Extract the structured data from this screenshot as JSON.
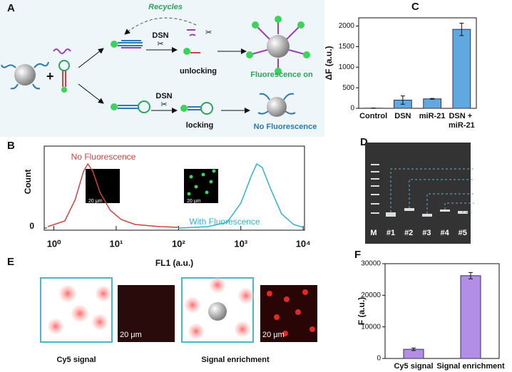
{
  "panel_labels": [
    "A",
    "B",
    "C",
    "D",
    "E",
    "F"
  ],
  "panel_a": {
    "recycles": "Recycles",
    "dsn_top": "DSN",
    "unlocking": "unlocking",
    "fluorescence_on": "Fluorescence on",
    "dsn_bottom": "DSN",
    "locking": "locking",
    "no_fluorescence": "No  Fluorescence"
  },
  "panel_d": {
    "lanes": [
      "M",
      "#1",
      "#2",
      "#3",
      "#4",
      "#5"
    ]
  },
  "panel_e": {
    "scale_bars": [
      "20 μm",
      "20 μm"
    ],
    "captions": [
      "Cy5 signal",
      "Signal enrichment"
    ]
  },
  "chart_data": [
    {
      "type": "line",
      "xlabel": "FL1 (a.u.)",
      "ylabel": "Count",
      "xscale": "log",
      "xlim": [
        0.7,
        10500
      ],
      "ylim": [
        0,
        115
      ],
      "xticks": [
        {
          "value": 1,
          "label": "10⁰"
        },
        {
          "value": 10,
          "label": "10¹"
        },
        {
          "value": 100,
          "label": "10²"
        },
        {
          "value": 1000,
          "label": "10³"
        },
        {
          "value": 10000,
          "label": "10⁴"
        }
      ],
      "yticks": [
        0
      ],
      "annotations": [
        "No  Fluorescence",
        "With Fluorescence",
        "20 μm",
        "20 μm"
      ],
      "series": [
        {
          "name": "No Fluorescence",
          "color": "#d0433f",
          "x": [
            0.8,
            1.5,
            2.2,
            3,
            3.5,
            4.2,
            5.5,
            8,
            12,
            20,
            50,
            100
          ],
          "values": [
            2,
            10,
            40,
            80,
            90,
            80,
            50,
            25,
            12,
            5,
            2,
            1
          ]
        },
        {
          "name": "With Fluorescence",
          "color": "#2bb3d0",
          "x": [
            100,
            300,
            600,
            1000,
            1500,
            1800,
            2200,
            3000,
            4500,
            7000,
            10000
          ],
          "values": [
            0,
            2,
            8,
            35,
            75,
            90,
            85,
            55,
            20,
            5,
            1
          ]
        }
      ]
    },
    {
      "type": "bar",
      "ylabel": "ΔF (a.u.)",
      "categories": [
        "Control",
        "DSN",
        "miR-21",
        "DSN + miR-21"
      ],
      "values": [
        5,
        200,
        230,
        1920
      ],
      "errors": [
        3,
        100,
        10,
        150
      ],
      "color": "#5fa8e0",
      "ylim": [
        0,
        2200
      ],
      "yticks": [
        0,
        500,
        1000,
        1500,
        2000
      ]
    },
    {
      "type": "bar",
      "ylabel": "F (a.u.)",
      "categories": [
        "Cy5 signal",
        "Signal enrichment"
      ],
      "values": [
        2900,
        26200
      ],
      "errors": [
        400,
        1000
      ],
      "color": "#b38ee6",
      "ylim": [
        0,
        30000
      ],
      "yticks": [
        0,
        10000,
        20000,
        30000
      ]
    }
  ]
}
